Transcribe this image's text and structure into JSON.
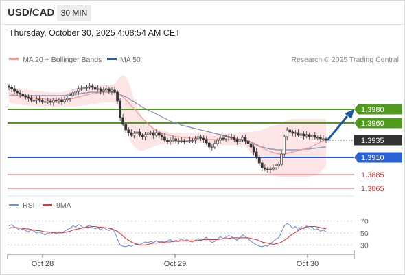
{
  "header": {
    "symbol": "USD/CAD",
    "timeframe": "30 MIN",
    "datetime": "Thursday, October 30, 2025 4:08:54 AM CET"
  },
  "legend": {
    "ma20_bb": "MA 20 + Bollinger Bands",
    "ma50": "MA 50",
    "credit": "Research © 2025 Trading Central",
    "rsi": "RSI",
    "rsi_ma": "9MA"
  },
  "colors": {
    "bollinger_fill": "#fde0e0",
    "ma20": "#f19a9a",
    "ma50": "#7d8cb4",
    "resistance": "#4f9a1c",
    "pivot": "#2b62d4",
    "support": "#e25656",
    "current": "#333333",
    "arrow": "#1e57a8",
    "rsi_line": "#6f8fd8",
    "rsi_ma_line": "#d93a3a"
  },
  "chart_data": [
    {
      "type": "candlestick",
      "title": "USD/CAD",
      "x_tick_labels": [
        "Oct 28",
        "Oct 29",
        "Oct 30"
      ],
      "y_range": [
        1.3855,
        1.4035
      ],
      "current_price": 1.3935,
      "levels": [
        {
          "label": "1.3980",
          "value": 1.398,
          "kind": "resistance"
        },
        {
          "label": "1.3960",
          "value": 1.396,
          "kind": "resistance"
        },
        {
          "label": "1.3935",
          "value": 1.3935,
          "kind": "current"
        },
        {
          "label": "1.3910",
          "value": 1.391,
          "kind": "pivot"
        },
        {
          "label": "1.3885",
          "value": 1.3885,
          "kind": "support"
        },
        {
          "label": "1.3865",
          "value": 1.3865,
          "kind": "support"
        }
      ],
      "close_series": [
        1.4012,
        1.401,
        1.4006,
        1.4004,
        1.4002,
        1.4,
        1.3998,
        1.3996,
        1.3993,
        1.3993,
        1.3995,
        1.3993,
        1.3991,
        1.399,
        1.3992,
        1.399,
        1.3993,
        1.3992,
        1.3994,
        1.3991,
        1.3994,
        1.3996,
        1.4,
        1.4004,
        1.4006,
        1.401,
        1.401,
        1.4012,
        1.4012,
        1.4014,
        1.4012,
        1.4009,
        1.401,
        1.4006,
        1.4008,
        1.401,
        1.4006,
        1.4008,
        1.4005,
        1.3992,
        1.3968,
        1.3958,
        1.395,
        1.3946,
        1.3942,
        1.3945,
        1.3947,
        1.3942,
        1.394,
        1.3943,
        1.3946,
        1.3946,
        1.3942,
        1.3946,
        1.3942,
        1.394,
        1.3935,
        1.3933,
        1.3935,
        1.3937,
        1.3934,
        1.3934,
        1.3934,
        1.3933,
        1.3934,
        1.3935,
        1.3935,
        1.3937,
        1.394,
        1.3938,
        1.3936,
        1.3931,
        1.3925,
        1.3925,
        1.393,
        1.3935,
        1.3938,
        1.3937,
        1.394,
        1.3939,
        1.3939,
        1.3936,
        1.3933,
        1.3936,
        1.3939,
        1.3934,
        1.393,
        1.3925,
        1.3918,
        1.391,
        1.3902,
        1.3895,
        1.3893,
        1.3892,
        1.3893,
        1.3895,
        1.3898,
        1.39,
        1.3915,
        1.394,
        1.395,
        1.3947,
        1.3945,
        1.3946,
        1.3942,
        1.3944,
        1.3941,
        1.3943,
        1.394,
        1.3942,
        1.3939,
        1.3939,
        1.3937,
        1.3937,
        1.3935
      ],
      "ma20": [
        1.4003,
        1.4002,
        1.4001,
        1.4,
        1.3999,
        1.3999,
        1.3998,
        1.3998,
        1.3997,
        1.3997,
        1.3996,
        1.3996,
        1.3996,
        1.3995,
        1.3995,
        1.3995,
        1.3995,
        1.3995,
        1.3994,
        1.3994,
        1.3994,
        1.3995,
        1.3995,
        1.3996,
        1.3997,
        1.3998,
        1.3999,
        1.4,
        1.4001,
        1.4002,
        1.4003,
        1.4003,
        1.4004,
        1.4004,
        1.4005,
        1.4005,
        1.4006,
        1.4006,
        1.4005,
        1.4004,
        1.4001,
        1.3998,
        1.3994,
        1.399,
        1.3985,
        1.3981,
        1.3976,
        1.3971,
        1.3967,
        1.3963,
        1.3959,
        1.3955,
        1.3952,
        1.3949,
        1.3947,
        1.3945,
        1.3944,
        1.3943,
        1.3942,
        1.3941,
        1.394,
        1.394,
        1.3939,
        1.3939,
        1.3939,
        1.3938,
        1.3938,
        1.3938,
        1.3938,
        1.3938,
        1.3937,
        1.3937,
        1.3936,
        1.3936,
        1.3936,
        1.3936,
        1.3936,
        1.3936,
        1.3936,
        1.3936,
        1.3936,
        1.3936,
        1.3936,
        1.3936,
        1.3936,
        1.3935,
        1.3934,
        1.3933,
        1.3931,
        1.3929,
        1.3927,
        1.3924,
        1.3922,
        1.392,
        1.3919,
        1.3917,
        1.3916,
        1.3915,
        1.3915,
        1.3915,
        1.3916,
        1.3917,
        1.3918,
        1.3919,
        1.392,
        1.3921,
        1.3922,
        1.3923,
        1.3924,
        1.3926,
        1.3928,
        1.393,
        1.3932,
        1.3934,
        1.3935
      ],
      "bb_upper": [
        1.4012,
        1.4012,
        1.4011,
        1.4011,
        1.401,
        1.401,
        1.4009,
        1.4008,
        1.4008,
        1.4007,
        1.4007,
        1.4006,
        1.4006,
        1.4005,
        1.4005,
        1.4005,
        1.4005,
        1.4005,
        1.4005,
        1.4005,
        1.4006,
        1.4007,
        1.4008,
        1.4009,
        1.401,
        1.4012,
        1.4013,
        1.4014,
        1.4015,
        1.4016,
        1.4016,
        1.4016,
        1.4016,
        1.4016,
        1.4016,
        1.4016,
        1.4016,
        1.4016,
        1.4018,
        1.4022,
        1.4028,
        1.403,
        1.4028,
        1.402,
        1.4008,
        1.3995,
        1.3985,
        1.3975,
        1.3968,
        1.3963,
        1.3959,
        1.3956,
        1.3954,
        1.3952,
        1.395,
        1.3949,
        1.3948,
        1.3947,
        1.3946,
        1.3946,
        1.3946,
        1.3946,
        1.3946,
        1.3946,
        1.3946,
        1.3946,
        1.3946,
        1.3946,
        1.3946,
        1.3946,
        1.3946,
        1.3946,
        1.3946,
        1.3946,
        1.3946,
        1.3946,
        1.3946,
        1.3946,
        1.3946,
        1.3946,
        1.3946,
        1.3946,
        1.3946,
        1.3946,
        1.3946,
        1.3947,
        1.3947,
        1.3947,
        1.3948,
        1.3948,
        1.3949,
        1.395,
        1.3952,
        1.3953,
        1.3955,
        1.3956,
        1.3957,
        1.3958,
        1.396,
        1.3962,
        1.3964,
        1.3965,
        1.3966,
        1.3966,
        1.3966,
        1.3966,
        1.3966,
        1.3966,
        1.3966,
        1.3966,
        1.3966,
        1.3966,
        1.3966,
        1.3966,
        1.3966
      ],
      "bb_lower": [
        1.399,
        1.3989,
        1.3988,
        1.3987,
        1.3987,
        1.3986,
        1.3986,
        1.3985,
        1.3985,
        1.3985,
        1.3985,
        1.3984,
        1.3984,
        1.3984,
        1.3984,
        1.3984,
        1.3984,
        1.3984,
        1.3984,
        1.3984,
        1.3984,
        1.3984,
        1.3984,
        1.3984,
        1.3984,
        1.3985,
        1.3985,
        1.3986,
        1.3986,
        1.3987,
        1.3988,
        1.3988,
        1.3989,
        1.3989,
        1.399,
        1.399,
        1.399,
        1.399,
        1.3989,
        1.3986,
        1.3978,
        1.3966,
        1.3952,
        1.394,
        1.3931,
        1.3925,
        1.3922,
        1.392,
        1.392,
        1.3921,
        1.3922,
        1.3924,
        1.3926,
        1.3927,
        1.3928,
        1.3929,
        1.3929,
        1.393,
        1.393,
        1.393,
        1.3931,
        1.3931,
        1.3931,
        1.3931,
        1.3931,
        1.3931,
        1.3931,
        1.3931,
        1.3931,
        1.3931,
        1.3931,
        1.3931,
        1.393,
        1.3929,
        1.3928,
        1.3928,
        1.3928,
        1.3928,
        1.3928,
        1.3928,
        1.3928,
        1.3928,
        1.3928,
        1.3928,
        1.3928,
        1.3926,
        1.3922,
        1.3916,
        1.391,
        1.3904,
        1.3899,
        1.3894,
        1.389,
        1.3887,
        1.3885,
        1.3884,
        1.3883,
        1.3882,
        1.3882,
        1.3882,
        1.3882,
        1.3882,
        1.3882,
        1.3882,
        1.3882,
        1.3882,
        1.3882,
        1.3882,
        1.3882,
        1.3883,
        1.3884,
        1.3886,
        1.3889,
        1.3893,
        1.3898
      ],
      "ma50": [
        1.4,
        1.4,
        1.4,
        1.4,
        1.4,
        1.4,
        1.4,
        1.4,
        1.4,
        1.4,
        1.4,
        1.4,
        1.4,
        1.4,
        1.4,
        1.4,
        1.4,
        1.4,
        1.4,
        1.4,
        1.4,
        1.4001,
        1.4001,
        1.4002,
        1.4002,
        1.4003,
        1.4003,
        1.4004,
        1.4004,
        1.4005,
        1.4005,
        1.4005,
        1.4005,
        1.4005,
        1.4005,
        1.4005,
        1.4005,
        1.4005,
        1.4005,
        1.4004,
        1.4002,
        1.4,
        1.3998,
        1.3996,
        1.3993,
        1.3991,
        1.3988,
        1.3986,
        1.3983,
        1.3981,
        1.3979,
        1.3977,
        1.3975,
        1.3973,
        1.3971,
        1.3969,
        1.3967,
        1.3965,
        1.3963,
        1.3961,
        1.396,
        1.3959,
        1.3957,
        1.3956,
        1.3955,
        1.3954,
        1.3953,
        1.3952,
        1.3951,
        1.395,
        1.3949,
        1.3948,
        1.3947,
        1.3946,
        1.3945,
        1.3944,
        1.3943,
        1.3942,
        1.3941,
        1.394,
        1.3939,
        1.3938,
        1.3937,
        1.3936,
        1.3935,
        1.3934,
        1.3933,
        1.3932,
        1.393,
        1.3928,
        1.3926,
        1.3925,
        1.3924,
        1.3923,
        1.3922,
        1.3922,
        1.3921,
        1.3921,
        1.3921,
        1.3921,
        1.3921,
        1.3921,
        1.3921,
        1.3921,
        1.3921,
        1.3921,
        1.3922,
        1.3922,
        1.3922,
        1.3923,
        1.3923,
        1.3924,
        1.3924,
        1.3925,
        1.3925
      ]
    },
    {
      "type": "line",
      "title": "RSI",
      "y_range": [
        20,
        80
      ],
      "y_tick_labels": [
        "70",
        "50",
        "30"
      ],
      "y_ticks": [
        70,
        50,
        30
      ],
      "series": [
        {
          "name": "RSI",
          "values": [
            62,
            64,
            60,
            58,
            55,
            57,
            54,
            52,
            55,
            53,
            50,
            52,
            49,
            47,
            50,
            48,
            51,
            49,
            52,
            50,
            53,
            56,
            58,
            62,
            60,
            64,
            62,
            58,
            61,
            63,
            60,
            57,
            59,
            55,
            60,
            56,
            54,
            58,
            52,
            40,
            30,
            28,
            27,
            29,
            28,
            30,
            32,
            30,
            33,
            35,
            34,
            36,
            34,
            37,
            35,
            36,
            34,
            37,
            39,
            35,
            38,
            36,
            40,
            37,
            39,
            36,
            35,
            38,
            41,
            38,
            40,
            43,
            38,
            34,
            36,
            40,
            44,
            41,
            43,
            46,
            44,
            41,
            38,
            42,
            47,
            44,
            40,
            36,
            33,
            30,
            28,
            27,
            29,
            28,
            32,
            36,
            40,
            42,
            52,
            62,
            66,
            63,
            58,
            61,
            55,
            60,
            57,
            62,
            58,
            60,
            55,
            57,
            53,
            55,
            52
          ]
        },
        {
          "name": "9MA",
          "values": [
            58,
            59,
            59,
            59,
            58,
            58,
            57,
            57,
            56,
            55,
            54,
            54,
            53,
            52,
            52,
            51,
            51,
            50,
            50,
            50,
            51,
            52,
            53,
            55,
            56,
            57,
            58,
            59,
            60,
            60,
            61,
            61,
            60,
            60,
            59,
            59,
            58,
            57,
            55,
            53,
            49,
            45,
            41,
            38,
            35,
            33,
            31,
            30,
            30,
            30,
            31,
            32,
            33,
            33,
            34,
            34,
            35,
            35,
            35,
            36,
            36,
            36,
            37,
            37,
            37,
            37,
            37,
            37,
            38,
            38,
            39,
            39,
            39,
            39,
            39,
            39,
            40,
            40,
            41,
            41,
            42,
            42,
            42,
            42,
            42,
            42,
            42,
            41,
            40,
            39,
            37,
            35,
            34,
            33,
            32,
            31,
            32,
            33,
            35,
            38,
            41,
            45,
            48,
            51,
            54,
            57,
            59,
            60,
            61,
            61,
            61,
            60,
            59,
            58,
            57
          ]
        }
      ]
    }
  ]
}
